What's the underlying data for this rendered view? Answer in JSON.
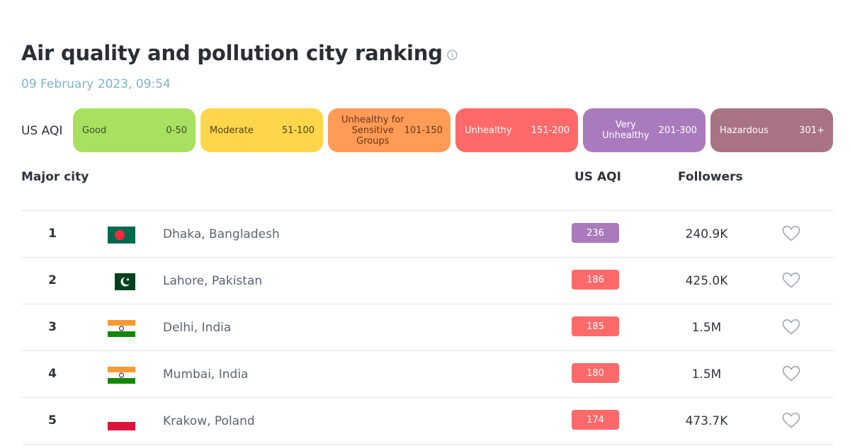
{
  "page": {
    "title": "Air quality and pollution city ranking",
    "date": "09 February 2023, 09:54",
    "info_icon": "info-icon"
  },
  "legend": {
    "label": "US AQI",
    "levels": [
      {
        "name": "Good",
        "range": "0-50",
        "color": "#a8e05f"
      },
      {
        "name": "Moderate",
        "range": "51-100",
        "color": "#fdd64b"
      },
      {
        "name": "Unhealthy for Sensitive Groups",
        "name_lines": [
          "Unhealthy for",
          "Sensitive",
          "Groups"
        ],
        "range": "101-150",
        "color": "#fe9b57"
      },
      {
        "name": "Unhealthy",
        "range": "151-200",
        "color": "#fe6a69"
      },
      {
        "name": "Very Unhealthy",
        "name_lines": [
          "Very",
          "Unhealthy"
        ],
        "range": "201-300",
        "color": "#a97abc"
      },
      {
        "name": "Hazardous",
        "range": "301+",
        "color": "#a87383"
      }
    ]
  },
  "table": {
    "headers": {
      "city": "Major city",
      "aqi": "US AQI",
      "followers": "Followers"
    },
    "rows": [
      {
        "rank": "1",
        "flag": "bangladesh-flag-icon",
        "city": "Dhaka, Bangladesh",
        "aqi": "236",
        "aqi_color": "#a97abc",
        "followers": "240.9K",
        "follow_icon": "heart-icon"
      },
      {
        "rank": "2",
        "flag": "pakistan-flag-icon",
        "city": "Lahore, Pakistan",
        "aqi": "186",
        "aqi_color": "#fe6a69",
        "followers": "425.0K",
        "follow_icon": "heart-icon"
      },
      {
        "rank": "3",
        "flag": "india-flag-icon",
        "city": "Delhi, India",
        "aqi": "185",
        "aqi_color": "#fe6a69",
        "followers": "1.5M",
        "follow_icon": "heart-icon"
      },
      {
        "rank": "4",
        "flag": "india-flag-icon",
        "city": "Mumbai, India",
        "aqi": "180",
        "aqi_color": "#fe6a69",
        "followers": "1.5M",
        "follow_icon": "heart-icon"
      },
      {
        "rank": "5",
        "flag": "poland-flag-icon",
        "city": "Krakow, Poland",
        "aqi": "174",
        "aqi_color": "#fe6a69",
        "followers": "473.7K",
        "follow_icon": "heart-icon"
      }
    ]
  }
}
